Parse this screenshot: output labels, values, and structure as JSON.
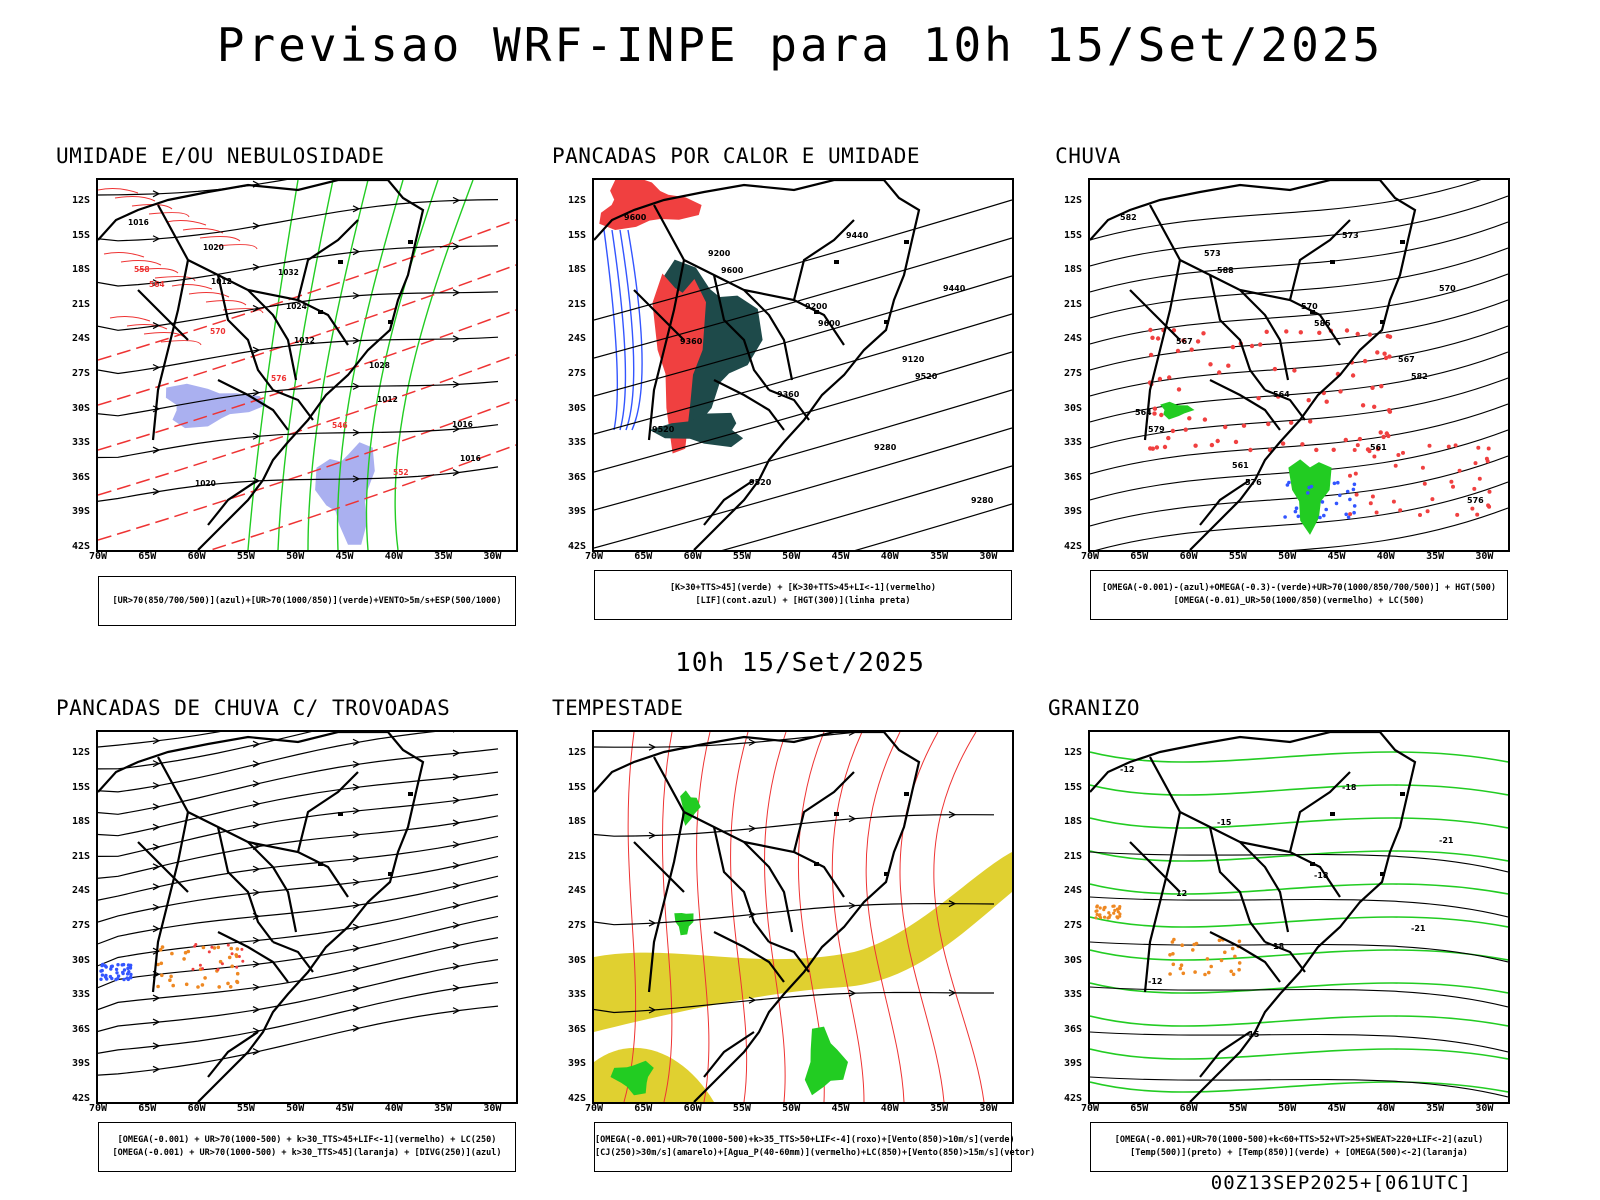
{
  "title": "Previsao WRF-INPE  para 10h 15/Set/2025",
  "mid_title": "10h 15/Set/2025",
  "footer": "00Z13SEP2025+[061UTC]",
  "lat_labels": [
    "12S",
    "15S",
    "18S",
    "21S",
    "24S",
    "27S",
    "30S",
    "33S",
    "36S",
    "39S",
    "42S"
  ],
  "lon_labels": [
    "70W",
    "65W",
    "60W",
    "55W",
    "50W",
    "45W",
    "40W",
    "35W",
    "30W"
  ],
  "colors": {
    "blue_area": "#aab0f0",
    "green_contour": "#22cc22",
    "red_contour": "#ee3333",
    "red_fill": "#f04040",
    "dark_teal": "#1e4a4a",
    "yellow_fill": "#e0d030",
    "blue_contour": "#3355ff",
    "orange": "#ee8822"
  },
  "panels": [
    {
      "title": "UMIDADE E/OU NEBULOSIDADE",
      "legend": [
        "[UR>70(850/700/500)](azul)+[UR>70(1000/850)](verde)+VENTO>5m/s+ESP(500/1000)"
      ],
      "labels": [
        "1016",
        "1012",
        "1012",
        "1012",
        "1016",
        "1020",
        "1024",
        "1028",
        "1016",
        "1020",
        "1032",
        "564",
        "570",
        "576",
        "546",
        "552",
        "558"
      ]
    },
    {
      "title": "PANCADAS POR CALOR E UMIDADE",
      "legend": [
        "[K>30+TTS>45](verde) + [K>30+TTS>45+LI<-1](vermelho)",
        "[LIF](cont.azul) + [HGT(300)](linha preta)"
      ],
      "labels": [
        "9600",
        "9600",
        "9600",
        "9520",
        "9520",
        "9520",
        "9440",
        "9440",
        "9360",
        "9360",
        "9280",
        "9280",
        "9200",
        "9200",
        "9120"
      ]
    },
    {
      "title": "CHUVA",
      "legend": [
        "[OMEGA(-0.001)-(azul)+OMEGA(-0.3)-(verde)+UR>70(1000/850/700/500)] + HGT(500)",
        "[OMEGA(-0.01)_UR>50(1000/850)(vermelho) + LC(500)"
      ],
      "labels": [
        "582",
        "588",
        "585",
        "582",
        "579",
        "576",
        "573",
        "570",
        "567",
        "564",
        "561",
        "576",
        "573",
        "570",
        "567",
        "564",
        "561"
      ]
    },
    {
      "title": "PANCADAS DE CHUVA C/ TROVOADAS",
      "legend": [
        "[OMEGA(-0.001) + UR>70(1000-500) + k>30_TTS>45+LIF<-1](vermelho) + LC(250)",
        "[OMEGA(-0.001) + UR>70(1000-500) + k>30_TTS>45](laranja) + [DIVG(250)](azul)"
      ],
      "labels": []
    },
    {
      "title": "TEMPESTADE",
      "legend": [
        "[OMEGA(-0.001)+UR>70(1000-500)+k>35_TTS>50+LIF<-4](roxo)+[Vento(850)>10m/s](verde)",
        "[CJ(250)>30m/s](amarelo)+[Agua_P(40-60mm)](vermelho)+LC(850)+[Vento(850)>15m/s](vetor)"
      ],
      "labels": []
    },
    {
      "title": "GRANIZO",
      "legend": [
        "[OMEGA(-0.001)+UR>70(1000-500)+k<60+TTS>52+VT>25+SWEAT>220+LIF<-2](azul)",
        "[Temp(500)](preto) + [Temp(850)](verde) + [OMEGA(500)<-2](laranja)"
      ],
      "labels": [
        "-12",
        "-15",
        "-18",
        "-21",
        "-12",
        "-15",
        "-18",
        "-21",
        "12",
        "18"
      ]
    }
  ]
}
